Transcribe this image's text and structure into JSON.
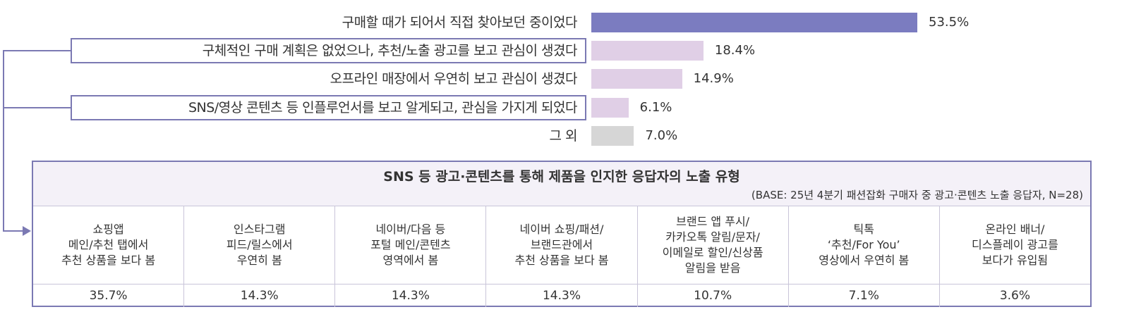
{
  "chart_data": {
    "type": "bar",
    "orientation": "horizontal",
    "categories": [
      "구매할 때가 되어서 직접 찾아보던 중이었다",
      "구체적인 구매 계획은 없었으나, 추천/노출 광고를 보고 관심이 생겼다",
      "오프라인 매장에서 우연히 보고 관심이 생겼다",
      "SNS/영상 콘텐츠 등 인플루언서를 보고 알게되고, 관심을 가지게 되었다",
      "그 외"
    ],
    "values": [
      53.5,
      18.4,
      14.9,
      6.1,
      7.0
    ],
    "labels": [
      "53.5%",
      "18.4%",
      "14.9%",
      "6.1%",
      "7.0%"
    ],
    "colors": [
      "#7b7cc0",
      "#e0cfe6",
      "#e0cfe6",
      "#e0cfe6",
      "#d6d6d6"
    ],
    "highlighted": [
      1,
      3
    ]
  },
  "table": {
    "title": "SNS 등 광고·콘텐츠를 통해 제품을 인지한 응답자의 노출 유형",
    "base": "(BASE: 25년 4분기 패션잡화 구매자 중 광고·콘텐츠 노출 응답자, N=28)",
    "columns": [
      "쇼핑앱\n메인/추천 탭에서\n추천 상품을 보다 봄",
      "인스타그램\n피드/릴스에서\n우연히 봄",
      "네이버/다음 등\n포털 메인/콘텐츠\n영역에서 봄",
      "네이버 쇼핑/패션/\n브랜드관에서\n추천 상품을 보다 봄",
      "브랜드 앱 푸시/\n카카오톡 알림/문자/\n이메일로 할인/신상품\n알림을 받음",
      "틱톡\n‘추천/For You’\n영상에서 우연히 봄",
      "온라인 배너/\n디스플레이 광고를\n보다가 유입됨"
    ],
    "values": [
      "35.7%",
      "14.3%",
      "14.3%",
      "14.3%",
      "10.7%",
      "7.1%",
      "3.6%"
    ]
  }
}
